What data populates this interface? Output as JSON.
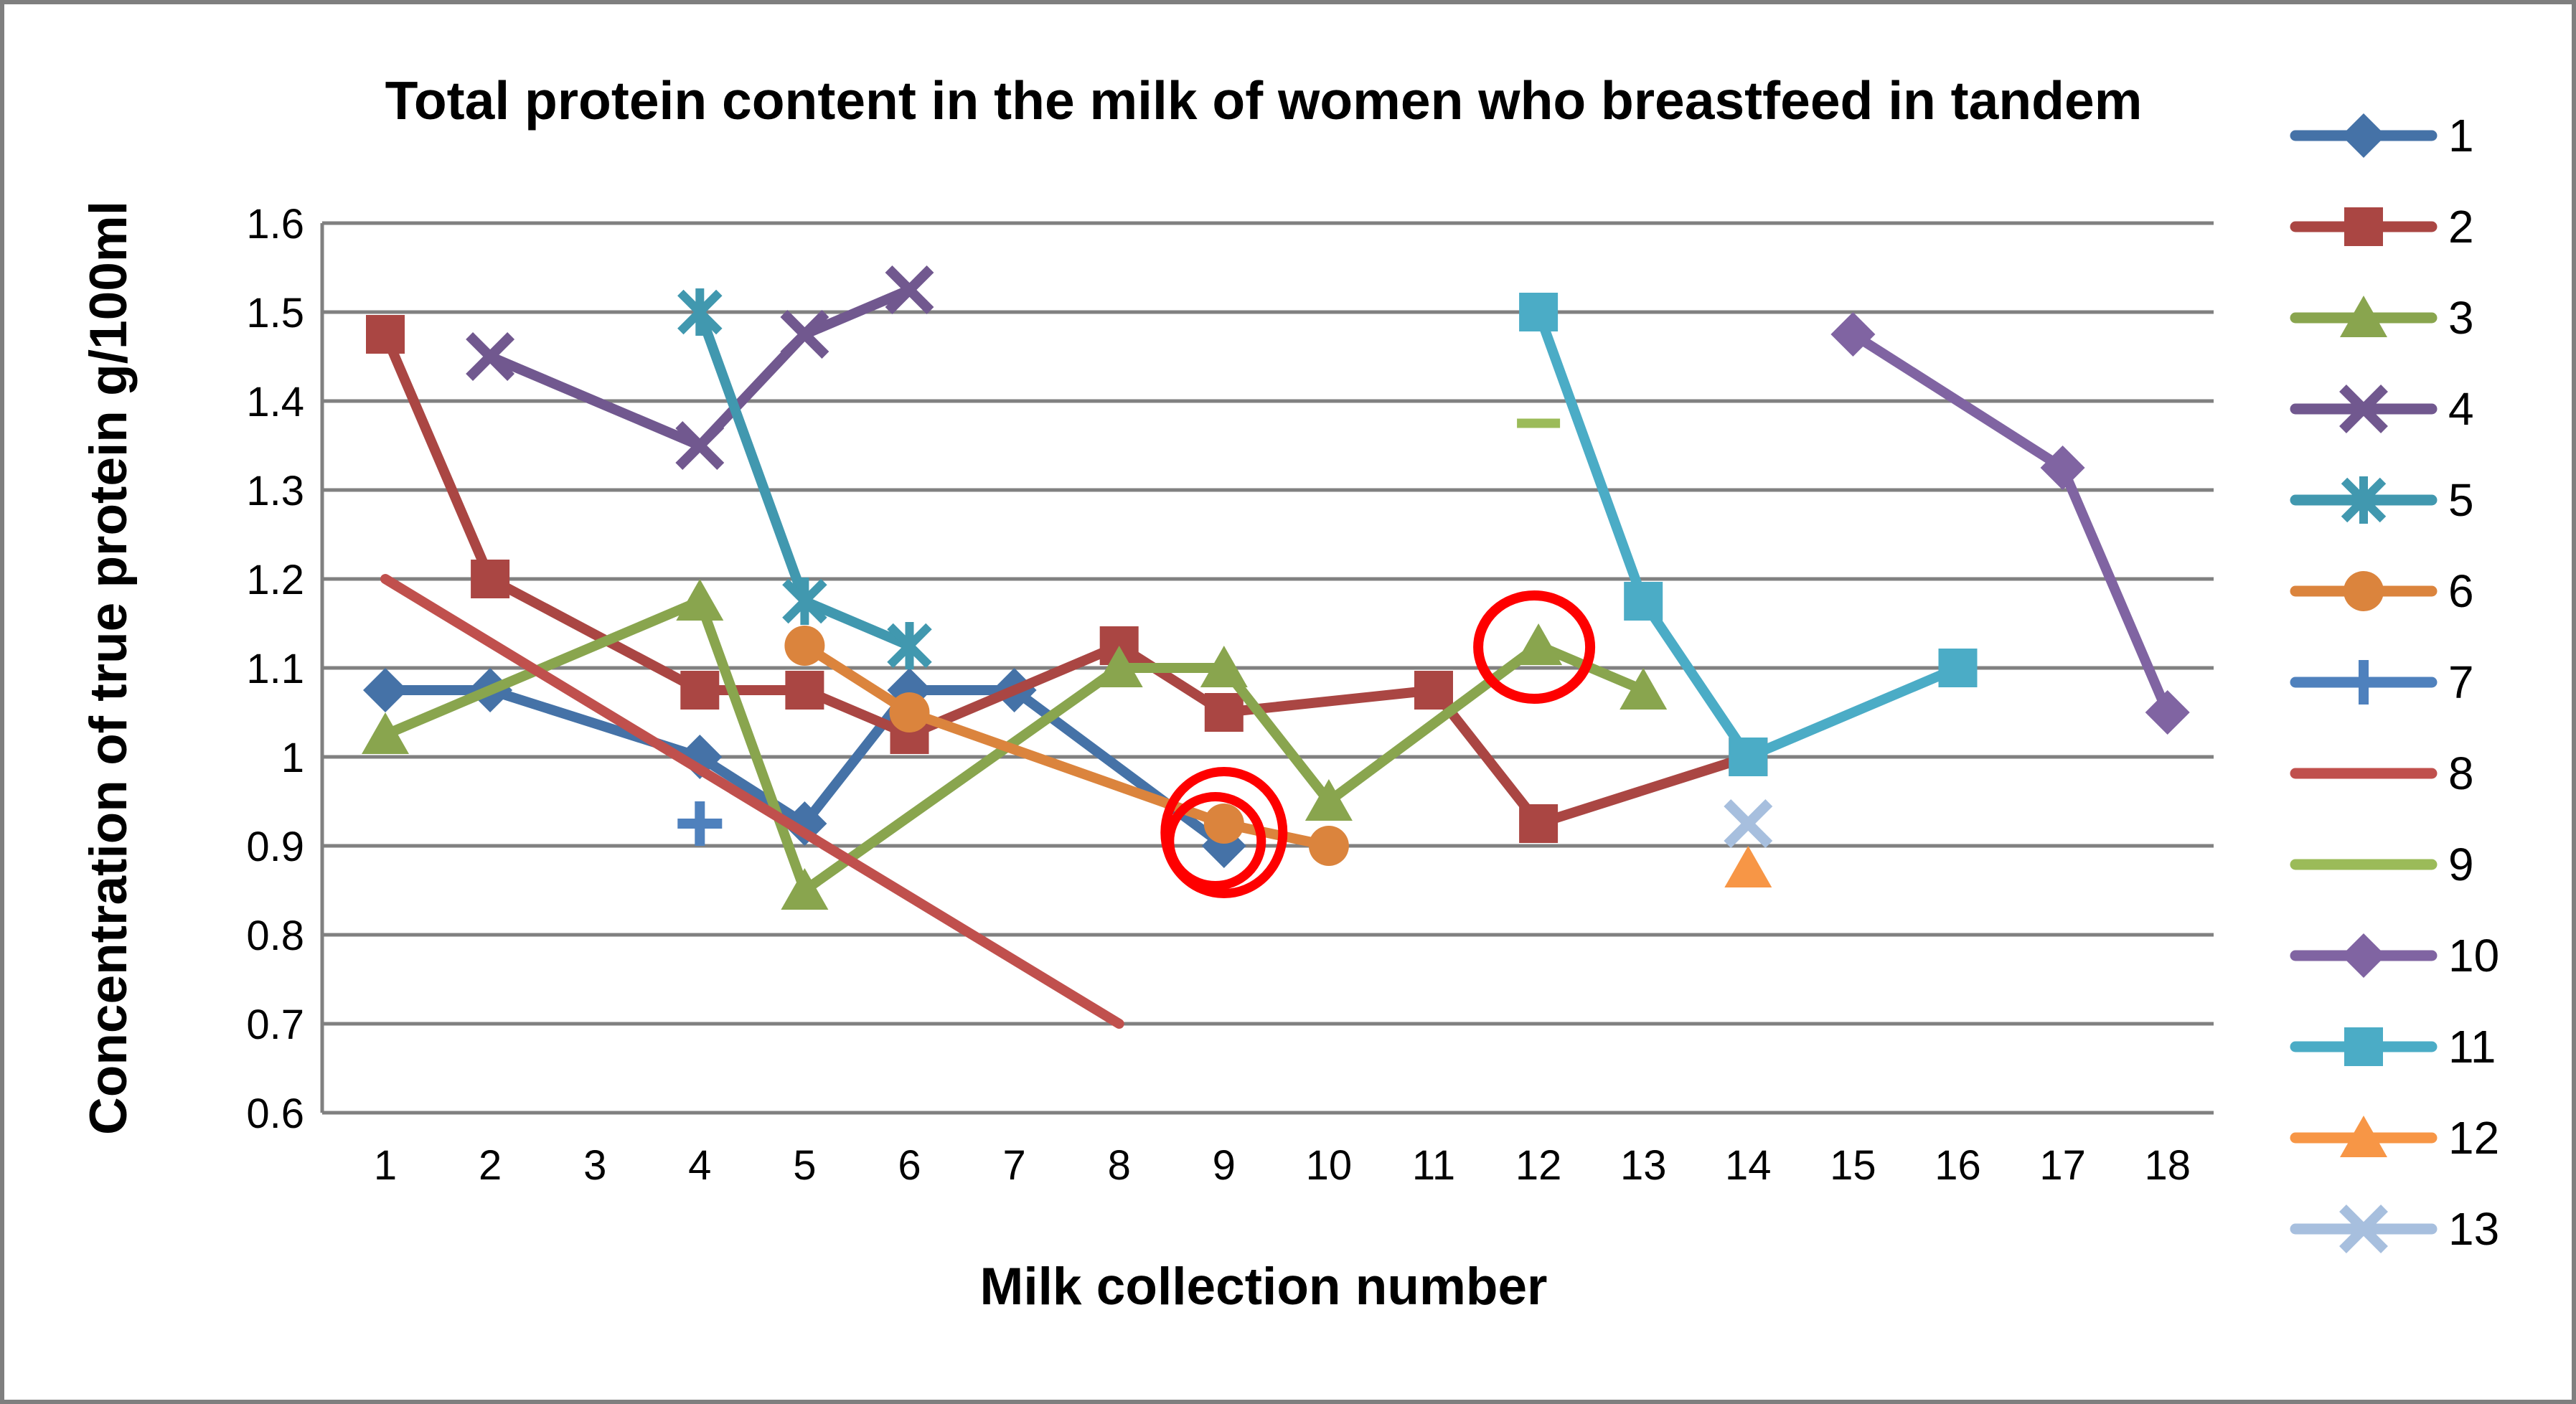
{
  "title": "Total protein content in the milk of women who breastfeed in tandem",
  "x_axis": {
    "title": "Milk collection number",
    "labels": [
      "1",
      "2",
      "3",
      "4",
      "5",
      "6",
      "7",
      "8",
      "9",
      "10",
      "11",
      "12",
      "13",
      "14",
      "15",
      "16",
      "17",
      "18"
    ]
  },
  "y_axis": {
    "title": "Concentration of true protein g/100ml",
    "labels": [
      "1.6",
      "1.5",
      "1.4",
      "1.3",
      "1.2",
      "1.1",
      "1",
      "0.9",
      "0.8",
      "0.7",
      "0.6"
    ]
  },
  "legend": {
    "labels": [
      "1",
      "2",
      "3",
      "4",
      "5",
      "6",
      "7",
      "8",
      "9",
      "10",
      "11",
      "12",
      "13"
    ]
  },
  "colors": {
    "gridline": "#808080",
    "axis_line": "#808080",
    "annotation": "#FE0000",
    "background": "#FFFFFF",
    "border": "#7F7F7F",
    "text": "#000000"
  },
  "chart_data": {
    "type": "line",
    "title": "Total protein content in the milk of women who breastfeed in tandem",
    "xlabel": "Milk collection number",
    "ylabel": "Concentration of true protein g/100ml",
    "x_categories": [
      1,
      2,
      3,
      4,
      5,
      6,
      7,
      8,
      9,
      10,
      11,
      12,
      13,
      14,
      15,
      16,
      17,
      18
    ],
    "ylim": [
      0.6,
      1.6
    ],
    "y_step": 0.1,
    "grid": "horizontal",
    "legend_position": "right",
    "series": [
      {
        "name": "1",
        "color": "#4572A7",
        "marker": "diamond",
        "points": [
          [
            1,
            1.075
          ],
          [
            2,
            1.075
          ],
          [
            4,
            1.0
          ],
          [
            5,
            0.925
          ],
          [
            6,
            1.075
          ],
          [
            7,
            1.075
          ],
          [
            9,
            0.9
          ]
        ]
      },
      {
        "name": "2",
        "color": "#AA4643",
        "marker": "square",
        "points": [
          [
            1,
            1.475
          ],
          [
            2,
            1.2
          ],
          [
            4,
            1.075
          ],
          [
            5,
            1.075
          ],
          [
            6,
            1.025
          ],
          [
            8,
            1.125
          ],
          [
            9,
            1.05
          ],
          [
            11,
            1.075
          ],
          [
            12,
            0.925
          ],
          [
            14,
            1.0
          ]
        ]
      },
      {
        "name": "3",
        "color": "#89A54E",
        "marker": "triangle",
        "points": [
          [
            1,
            1.025
          ],
          [
            4,
            1.175
          ],
          [
            5,
            0.85
          ],
          [
            8,
            1.1
          ],
          [
            9,
            1.1
          ],
          [
            10,
            0.95
          ],
          [
            12,
            1.125
          ],
          [
            13,
            1.075
          ]
        ]
      },
      {
        "name": "4",
        "color": "#71588F",
        "marker": "x",
        "points": [
          [
            2,
            1.45
          ],
          [
            4,
            1.35
          ],
          [
            5,
            1.475
          ],
          [
            6,
            1.525
          ]
        ]
      },
      {
        "name": "5",
        "color": "#4198AF",
        "marker": "star",
        "points": [
          [
            4,
            1.5
          ],
          [
            5,
            1.175
          ],
          [
            6,
            1.125
          ]
        ]
      },
      {
        "name": "6",
        "color": "#DB843D",
        "marker": "circle",
        "points": [
          [
            5,
            1.125
          ],
          [
            6,
            1.05
          ],
          [
            9,
            0.925
          ],
          [
            10,
            0.9
          ]
        ]
      },
      {
        "name": "7",
        "color": "#4F81BD",
        "marker": "plus",
        "points": [
          [
            4,
            0.925
          ]
        ]
      },
      {
        "name": "8",
        "color": "#C0504D",
        "marker": "none",
        "points": [
          [
            1,
            1.2
          ],
          [
            8,
            0.7
          ]
        ]
      },
      {
        "name": "9",
        "color": "#9BBB59",
        "marker": "dash",
        "points": [
          [
            12,
            1.375
          ]
        ]
      },
      {
        "name": "10",
        "color": "#8064A2",
        "marker": "diamond",
        "points": [
          [
            15,
            1.475
          ],
          [
            17,
            1.325
          ],
          [
            18,
            1.05
          ]
        ]
      },
      {
        "name": "11",
        "color": "#4BACC6",
        "marker": "square",
        "points": [
          [
            12,
            1.5
          ],
          [
            13,
            1.175
          ],
          [
            14,
            1.0
          ],
          [
            16,
            1.1
          ]
        ]
      },
      {
        "name": "12",
        "color": "#F79646",
        "marker": "triangle",
        "points": [
          [
            14,
            0.875
          ]
        ]
      },
      {
        "name": "13",
        "color": "#A7BFDE",
        "marker": "x",
        "points": [
          [
            14,
            0.925
          ]
        ]
      }
    ],
    "annotations": [
      {
        "type": "double-circle",
        "x": 9,
        "y": 0.9125,
        "note": "hand-drawn red double circle around points at collection 9"
      },
      {
        "type": "circle",
        "x": 12,
        "y": 1.125,
        "note": "hand-drawn red circle around green point at collection 12"
      }
    ]
  }
}
